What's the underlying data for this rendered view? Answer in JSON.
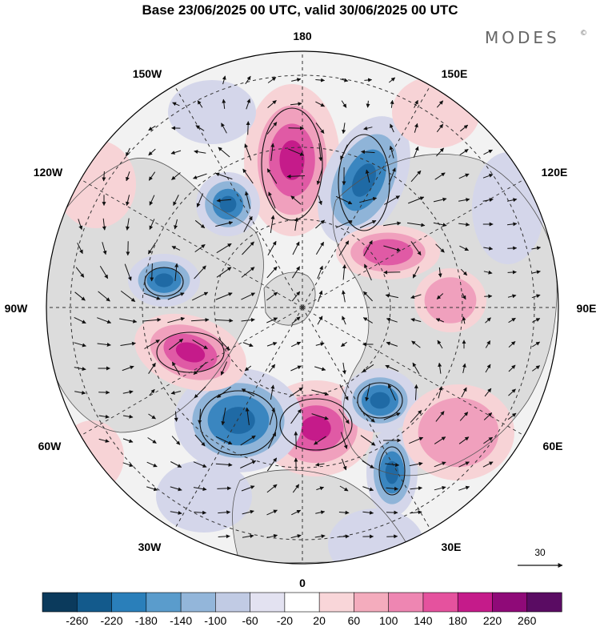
{
  "title": "Base 23/06/2025 00 UTC, valid 30/06/2025 00 UTC",
  "brand": "MODES",
  "brand_mark": "©",
  "longitude_labels": [
    "180",
    "150E",
    "120E",
    "90E",
    "60E",
    "30E",
    "0",
    "30W",
    "60W",
    "90W",
    "120W",
    "150W"
  ],
  "reference_vector": {
    "label": "30"
  },
  "colorbar": {
    "ticks": [
      "-260",
      "-220",
      "-180",
      "-140",
      "-100",
      "-60",
      "-20",
      "20",
      "60",
      "100",
      "140",
      "180",
      "220",
      "260"
    ],
    "colors": [
      "#0b3a5c",
      "#135a8c",
      "#2a7fba",
      "#5a9ccc",
      "#93b6da",
      "#c1cbe4",
      "#e3e2f1",
      "#ffffff",
      "#f9d6d9",
      "#f4acbd",
      "#ee86b2",
      "#e5529e",
      "#c51b8a",
      "#8f0a78",
      "#5a0c63"
    ]
  },
  "colors": {
    "land": "#dcdcdc",
    "ocean_neutral": "#f2f2f2",
    "pos_light": "#f7d3d6",
    "pos_mid": "#f0a0bd",
    "pos_strong": "#e05aa5",
    "pos_core": "#c51b8a",
    "neg_light": "#d4d6ea",
    "neg_mid": "#8fb4d8",
    "neg_strong": "#3a86c0",
    "neg_core": "#1f6aa5"
  }
}
